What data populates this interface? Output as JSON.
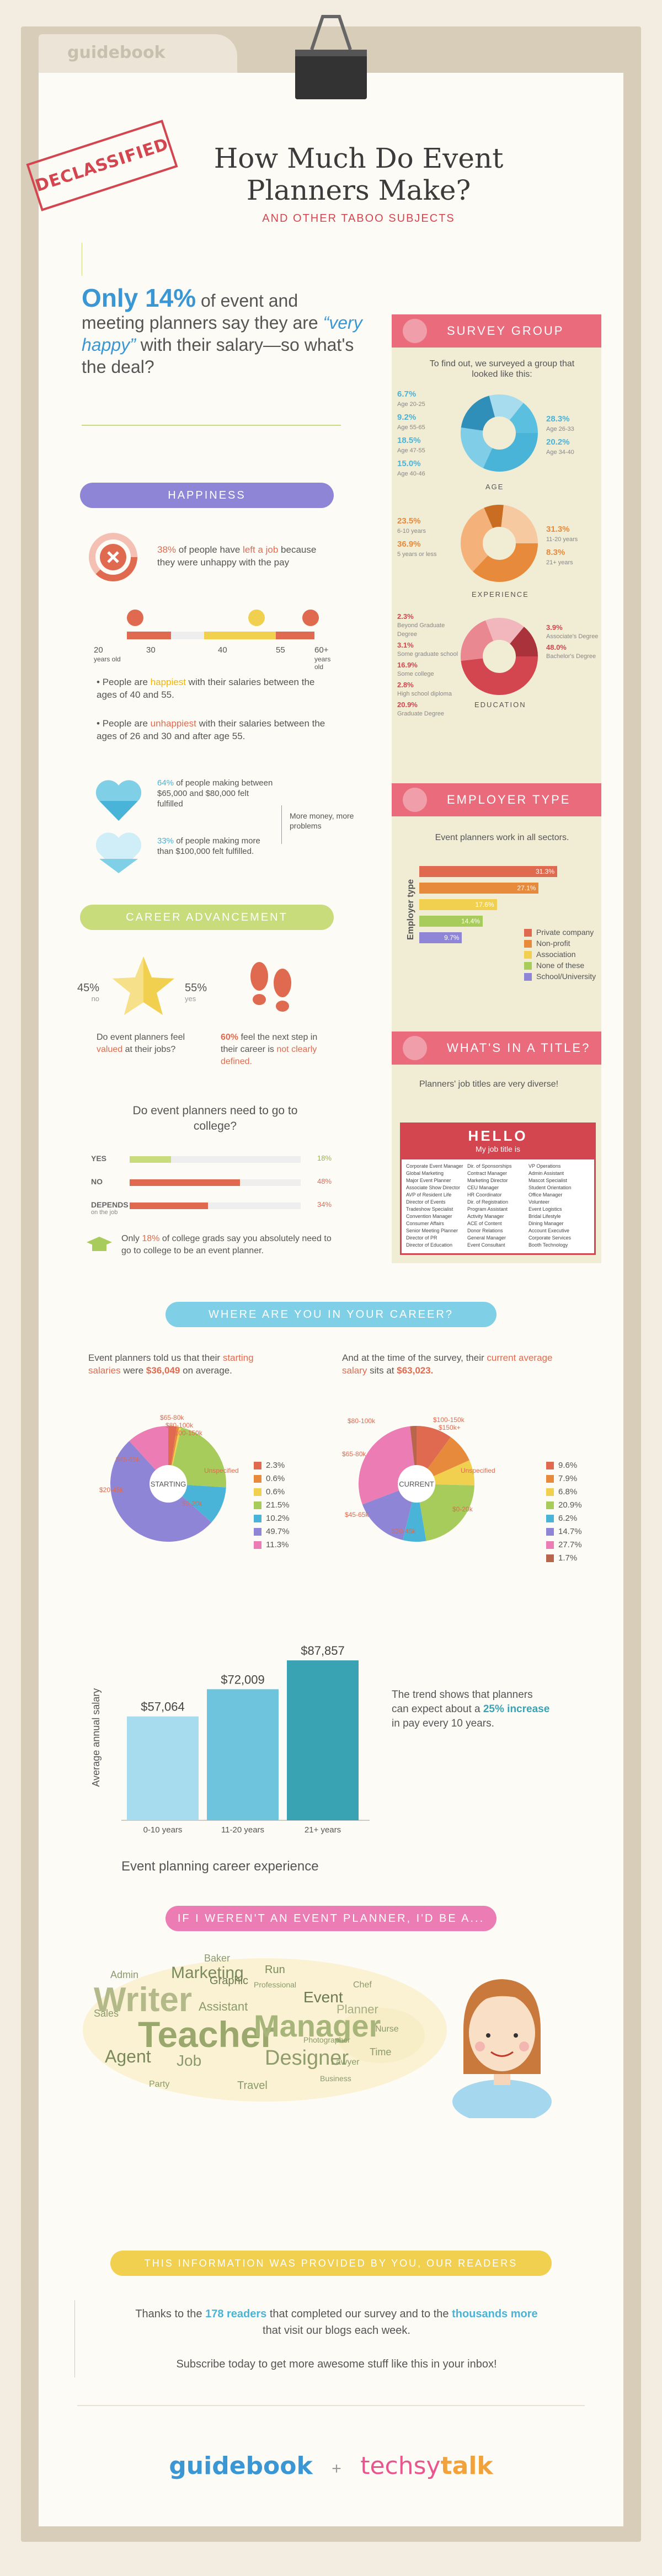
{
  "header": {
    "folder_label": "guidebook",
    "stamp": "DECLASSIFIED",
    "title_line1": "How Much Do Event",
    "title_line2": "Planners Make?",
    "subtitle": "AND OTHER TABOO SUBJECTS"
  },
  "lead": {
    "pct": "Only 14%",
    "text1": "of event and meeting planners say they are",
    "quote": "“very happy”",
    "text2": "with their salary—so what's the deal?"
  },
  "colors": {
    "red": "#e06a4f",
    "pink": "#e96b7c",
    "blue": "#49b3d8",
    "green": "#c8dc7b",
    "purple": "#8f85d6",
    "orange": "#e78a3b",
    "yellow": "#f2d04f",
    "teal": "#3aa3b3"
  },
  "survey_group": {
    "heading": "SURVEY GROUP",
    "intro": "To find out, we surveyed a group that looked like this:",
    "age": {
      "label": "AGE",
      "left": [
        {
          "v": "6.7%",
          "l": "Age 20-25"
        },
        {
          "v": "9.2%",
          "l": "Age 55-65"
        },
        {
          "v": "18.5%",
          "l": "Age 47-55"
        },
        {
          "v": "15.0%",
          "l": "Age 40-46"
        }
      ],
      "right": [
        {
          "v": "28.3%",
          "l": "Age 26-33"
        },
        {
          "v": "20.2%",
          "l": "Age 34-40"
        }
      ]
    },
    "experience": {
      "label": "EXPERIENCE",
      "left": [
        {
          "v": "23.5%",
          "l": "6-10 years"
        },
        {
          "v": "36.9%",
          "l": "5 years or less"
        }
      ],
      "right": [
        {
          "v": "31.3%",
          "l": "11-20 years"
        },
        {
          "v": "8.3%",
          "l": "21+ years"
        }
      ]
    },
    "education": {
      "label": "EDUCATION",
      "left": [
        {
          "v": "2.3%",
          "l": "Beyond Graduate Degree"
        },
        {
          "v": "3.1%",
          "l": "Some graduate school"
        },
        {
          "v": "16.9%",
          "l": "Some college"
        },
        {
          "v": "2.8%",
          "l": "High school diploma"
        },
        {
          "v": "20.9%",
          "l": "Graduate Degree"
        }
      ],
      "right": [
        {
          "v": "3.9%",
          "l": "Associate's Degree"
        },
        {
          "v": "48.0%",
          "l": "Bachelor's Degree"
        }
      ]
    }
  },
  "employer_type": {
    "heading": "EMPLOYER TYPE",
    "intro": "Event planners work in all sectors.",
    "axis": "Employer type",
    "bars": [
      {
        "v": "31.3%",
        "label": "Private company",
        "color": "#e06a4f",
        "value": 31.3
      },
      {
        "v": "27.1%",
        "label": "Non-profit",
        "color": "#e78a3b",
        "value": 27.1
      },
      {
        "v": "17.6%",
        "label": "Association",
        "color": "#f2d04f",
        "value": 17.6
      },
      {
        "v": "14.4%",
        "label": "None of these",
        "color": "#a8cc5c",
        "value": 14.4
      },
      {
        "v": "9.7%",
        "label": "School/University",
        "color": "#8f85d6",
        "value": 9.7
      }
    ]
  },
  "title_section": {
    "heading": "WHAT'S IN A TITLE?",
    "intro": "Planners' job titles are very diverse!",
    "hello": "HELLO",
    "my_title": "My job title is",
    "col1": [
      "Corporate Event Manager",
      "Global Marketing",
      "Major Event Planner",
      "Associate Show Director",
      "AVP of Resident Life",
      "Director of Events",
      "Tradeshow Specialist",
      "Convention Manager",
      "Consumer Affairs",
      "Senior Meeting Planner",
      "Director of PR",
      "Director of Education"
    ],
    "col2": [
      "Dir. of Sponsorships",
      "Contract Manager",
      "Marketing Director",
      "CEU Manager",
      "HR Coordinator",
      "Dir. of Registration",
      "Program Assistant",
      "Activity Manager",
      "ACE of Content",
      "Donor Relations",
      "General Manager",
      "Event Consultant"
    ],
    "col3": [
      "VP Operations",
      "Admin Assistant",
      "Mascot Specialist",
      "Student Orientation",
      "Office Manager",
      "Volunteer",
      "Event Logistics",
      "Bridal Lifestyle",
      "Dining Manager",
      "Account Executive",
      "Corporate Services",
      "Booth Technology"
    ]
  },
  "happiness": {
    "heading": "HAPPINESS",
    "left_job": {
      "pct": "38%",
      "t1": "of people have",
      "hl": "left a job",
      "t2": "because they were unhappy with the pay"
    },
    "ages": [
      "20",
      "30",
      "40",
      "55",
      "60+"
    ],
    "age_sub": [
      "years old",
      "years old"
    ],
    "happiest": {
      "t1": "People are",
      "hl": "happiest",
      "t2": "with their salaries between the ages of 40 and 55."
    },
    "unhappiest": {
      "t1": "People are",
      "hl": "unhappiest",
      "t2": "with their salaries between the ages of 26 and 30 and after age 55."
    },
    "h1": {
      "pct": "64%",
      "text": "of people making between $65,000 and $80,000 felt fulfilled"
    },
    "h2": {
      "pct": "33%",
      "text": "of people making more than $100,000 felt fulfilled."
    },
    "note": "More money, more problems"
  },
  "career": {
    "heading": "CAREER ADVANCEMENT",
    "no_pct": "45%",
    "no": "no",
    "yes_pct": "55%",
    "yes": "yes",
    "valued": {
      "t1": "Do event planners feel",
      "hl": "valued",
      "t2": "at their jobs?"
    },
    "next": {
      "pct": "60%",
      "t1": "feel the next step in their career is",
      "hl": "not clearly defined."
    }
  },
  "college": {
    "question": "Do event planners need to go to college?",
    "rows": [
      {
        "label": "YES",
        "v": "18%",
        "value": 18
      },
      {
        "label": "NO",
        "v": "48%",
        "value": 48
      },
      {
        "label": "DEPENDS",
        "sub": "on the job",
        "v": "34%",
        "value": 34
      }
    ],
    "note_t1": "Only",
    "note_pct": "18%",
    "note_t2": "of college grads say you absolutely need to go to college to be an event planner."
  },
  "where": {
    "heading": "WHERE ARE YOU IN YOUR CAREER?",
    "start_text": {
      "t1": "Event planners told us that their",
      "hl": "starting salaries",
      "t2": "were",
      "amt": "$36,049",
      "t3": "on average."
    },
    "current_text": {
      "t1": "And at the time of the survey, their",
      "hl": "current average salary",
      "t2": "sits at",
      "amt": "$63,023."
    },
    "starting": {
      "center": "STARTING",
      "labels": [
        "$65-80k",
        "$80-100k",
        "$100-150k",
        "$45-65k",
        "Unspecified",
        "$20-45k",
        "$0-20k"
      ],
      "legend": [
        {
          "v": "2.3%",
          "c": "#e06a4f"
        },
        {
          "v": "0.6%",
          "c": "#e78a3b"
        },
        {
          "v": "0.6%",
          "c": "#f2d04f"
        },
        {
          "v": "21.5%",
          "c": "#a8cc5c"
        },
        {
          "v": "10.2%",
          "c": "#49b3d8"
        },
        {
          "v": "49.7%",
          "c": "#8f85d6"
        },
        {
          "v": "11.3%",
          "c": "#ec7cb4"
        }
      ]
    },
    "current": {
      "center": "CURRENT",
      "labels": [
        "$80-100k",
        "$100-150k",
        "$150k+",
        "$65-80k",
        "Unspecified",
        "$45-65k",
        "$0-20k",
        "$20-45k"
      ],
      "legend": [
        {
          "v": "9.6%",
          "c": "#e06a4f"
        },
        {
          "v": "7.9%",
          "c": "#e78a3b"
        },
        {
          "v": "6.8%",
          "c": "#f2d04f"
        },
        {
          "v": "20.9%",
          "c": "#a8cc5c"
        },
        {
          "v": "6.2%",
          "c": "#49b3d8"
        },
        {
          "v": "14.7%",
          "c": "#8f85d6"
        },
        {
          "v": "27.7%",
          "c": "#ec7cb4"
        },
        {
          "v": "1.7%",
          "c": "#b8654b"
        }
      ]
    }
  },
  "chart_data": {
    "type": "bar",
    "categories": [
      "0-10 years",
      "11-20 years",
      "21+ years"
    ],
    "values": [
      57064,
      72009,
      87857
    ],
    "value_labels": [
      "$57,064",
      "$72,009",
      "$87,857"
    ],
    "xlabel": "Event planning career experience",
    "ylabel": "Average annual salary"
  },
  "trend": {
    "t1": "The trend shows that planners can expect about a",
    "hl": "25% increase",
    "t2": "in pay every 10 years."
  },
  "wordcloud": {
    "heading": "IF I WEREN'T AN EVENT PLANNER, I'D BE A...",
    "words": [
      "Writer",
      "Teacher",
      "Manager",
      "Marketing",
      "Agent",
      "Job",
      "Designer",
      "Event",
      "Planner",
      "Admin",
      "Travel",
      "Baker",
      "Graphic",
      "Assistant",
      "Sales",
      "Chef",
      "Business",
      "Photographer",
      "Lawyer",
      "Nurse",
      "Run",
      "Professional",
      "Time",
      "Party"
    ]
  },
  "footer": {
    "heading": "THIS INFORMATION WAS PROVIDED BY YOU, OUR READERS",
    "thanks_t1": "Thanks to the",
    "num": "178 readers",
    "thanks_t2": "that completed our survey and to the",
    "more": "thousands more",
    "thanks_t3": "that visit our blogs each week.",
    "subscribe": "Subscribe today to get more awesome stuff like this in your inbox!",
    "logo1": "guidebook",
    "plus": "+",
    "logo2a": "techsy",
    "logo2b": "talk"
  }
}
